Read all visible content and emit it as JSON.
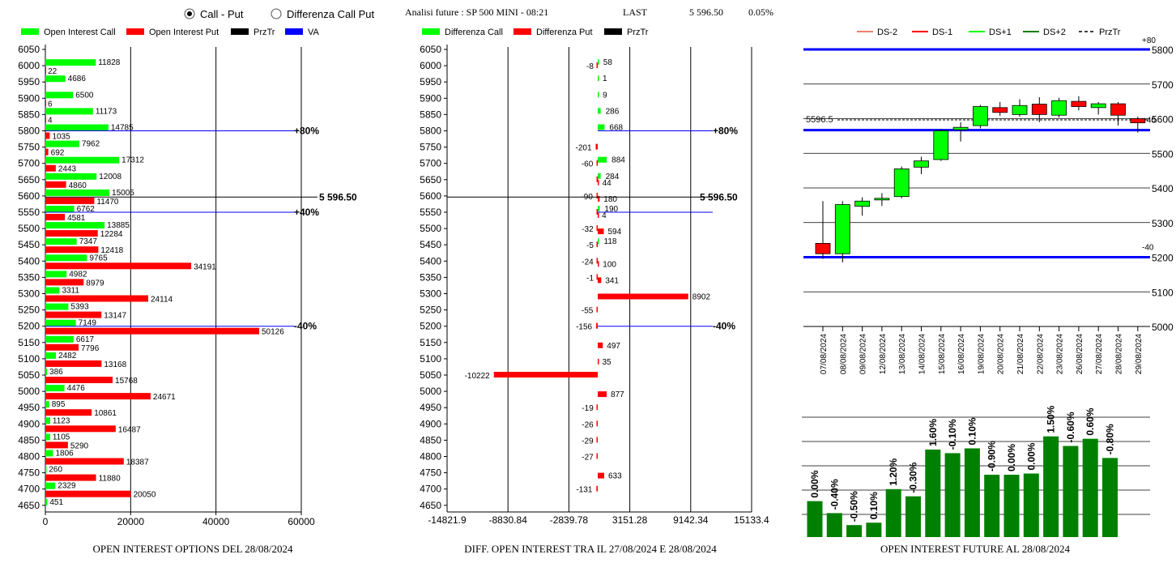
{
  "header": {
    "radio_call_put": "Call - Put",
    "radio_diff": "Differenza Call Put",
    "radio_selected": "call_put",
    "analysis_title": "Analisi future : SP 500 MINI - 08:21",
    "last_label": "LAST",
    "last_value": "5 596.50",
    "last_change": "0.05%"
  },
  "colors": {
    "call": "#00ff00",
    "put": "#ff0000",
    "przTr": "#000000",
    "va": "#0000ff",
    "bar_green": "#008000",
    "up_candle": "#00ff00",
    "down_candle": "#ff0000"
  },
  "chart_data": [
    {
      "type": "bar",
      "orientation": "horizontal",
      "title": "OPEN INTEREST OPTIONS DEL 28/08/2024",
      "legend": [
        "Open Interest Call",
        "Open Interest Put",
        "PrzTr",
        "VA"
      ],
      "categories": [
        6050,
        6000,
        5950,
        5900,
        5850,
        5800,
        5750,
        5700,
        5650,
        5600,
        5550,
        5500,
        5450,
        5400,
        5350,
        5300,
        5250,
        5200,
        5150,
        5100,
        5050,
        5000,
        4950,
        4900,
        4850,
        4800,
        4750,
        4700,
        4650
      ],
      "series": [
        {
          "name": "Open Interest Call",
          "values": [
            null,
            11828,
            4686,
            6500,
            11173,
            14785,
            7962,
            17312,
            12008,
            15005,
            6762,
            13885,
            7347,
            9765,
            4982,
            3311,
            5393,
            7149,
            6617,
            2482,
            386,
            4476,
            895,
            1123,
            1105,
            1806,
            260,
            2329,
            451
          ]
        },
        {
          "name": "Open Interest Put",
          "values": [
            null,
            22,
            null,
            6,
            4,
            1035,
            692,
            2443,
            4860,
            11470,
            4581,
            12284,
            12418,
            34191,
            8979,
            24114,
            13147,
            50126,
            7796,
            13168,
            15768,
            24671,
            10861,
            16487,
            5290,
            18387,
            11880,
            20050,
            null
          ]
        }
      ],
      "xlim": [
        0,
        60000
      ],
      "xticks": [
        "0",
        "20000",
        "40000",
        "60000"
      ],
      "price_line": {
        "value": 5596.5,
        "label": "5 596.50"
      },
      "va_lines": [
        {
          "strike": 5800,
          "label": "+80%"
        },
        {
          "strike": 5550,
          "label": "+40%"
        },
        {
          "strike": 5200,
          "label": "-40%"
        }
      ]
    },
    {
      "type": "bar",
      "orientation": "horizontal",
      "title": "DIFF. OPEN INTEREST TRA IL 27/08/2024 E 28/08/2024",
      "legend": [
        "Differenza Call",
        "Differenza Put",
        "PrzTr"
      ],
      "categories": [
        6050,
        6000,
        5950,
        5900,
        5850,
        5800,
        5750,
        5700,
        5650,
        5600,
        5550,
        5500,
        5450,
        5400,
        5350,
        5300,
        5250,
        5200,
        5150,
        5100,
        5050,
        5000,
        4950,
        4900,
        4850,
        4800,
        4750,
        4700,
        4650
      ],
      "series": [
        {
          "name": "Differenza Call",
          "values": [
            null,
            58,
            1,
            9,
            286,
            668,
            null,
            884,
            284,
            null,
            190,
            null,
            118,
            null,
            null,
            null,
            null,
            null,
            null,
            null,
            null,
            null,
            null,
            null,
            null,
            null,
            null,
            null,
            null
          ]
        },
        {
          "name": "Differenza Put",
          "values": [
            null,
            -8,
            null,
            null,
            null,
            null,
            -201,
            -60,
            44,
            -90,
            4,
            -32,
            -5,
            -24,
            -1,
            null,
            -55,
            -156,
            null,
            null,
            -10222,
            null,
            -19,
            -26,
            -29,
            -27,
            null,
            -131,
            null
          ]
        }
      ],
      "point_labels": [
        {
          "strike": 6000,
          "call": "58",
          "put": "-8"
        },
        {
          "strike": 5950,
          "call": "1"
        },
        {
          "strike": 5900,
          "call": "9"
        },
        {
          "strike": 5850,
          "call": "286"
        },
        {
          "strike": 5800,
          "call": "668"
        },
        {
          "strike": 5750,
          "put": "-201"
        },
        {
          "strike": 5700,
          "call": "884",
          "put": "-60"
        },
        {
          "strike": 5650,
          "call": "284",
          "put2": "44"
        },
        {
          "strike": 5600,
          "put": "-90",
          "put2": "180"
        },
        {
          "strike": 5550,
          "call": "190",
          "put2": "4"
        },
        {
          "strike": 5500,
          "put": "-32",
          "put2": "594"
        },
        {
          "strike": 5450,
          "put": "-5",
          "call": "118"
        },
        {
          "strike": 5400,
          "put": "-24",
          "put2": "100"
        },
        {
          "strike": 5350,
          "put": "-1",
          "put2": "341"
        },
        {
          "strike": 5300,
          "put2": "8902"
        },
        {
          "strike": 5250,
          "put": "-55"
        },
        {
          "strike": 5200,
          "put": "-156"
        },
        {
          "strike": 5150,
          "put2": "497"
        },
        {
          "strike": 5100,
          "put2": "35"
        },
        {
          "strike": 5050,
          "put": "-10222"
        },
        {
          "strike": 5000,
          "put2": "877"
        },
        {
          "strike": 4950,
          "put": "-19"
        },
        {
          "strike": 4900,
          "put": "-26"
        },
        {
          "strike": 4850,
          "put": "-29"
        },
        {
          "strike": 4800,
          "put": "-27"
        },
        {
          "strike": 4750,
          "put2": "633"
        },
        {
          "strike": 4700,
          "put": "-131"
        }
      ],
      "put_positive": {
        "5650": 44,
        "5600": 180,
        "5550": 4,
        "5500": 594,
        "5400": 100,
        "5350": 341,
        "5300": 8902,
        "5150": 497,
        "5100": 35,
        "5000": 877,
        "4750": 633
      },
      "xlim": [
        -14821.9,
        15133.4
      ],
      "xticks": [
        "-14821.9",
        "-8830.84",
        "-2839.78",
        "3151.28",
        "9142.34",
        "15133.4"
      ],
      "price_line": {
        "value": 5596.5,
        "label": "5 596.50"
      },
      "va_lines": [
        {
          "strike": 5800,
          "label": "+80%"
        },
        {
          "strike": 5550,
          "label": ""
        },
        {
          "strike": 5200,
          "label": "-40%"
        }
      ]
    },
    {
      "type": "candlestick",
      "legend": [
        "DS-2",
        "DS-1",
        "DS+1",
        "DS+2",
        "PrzTr"
      ],
      "legend_colors": [
        "#f08070",
        "#ff0000",
        "#00ff00",
        "#008000",
        "#000000"
      ],
      "dates": [
        "07/08/2024",
        "08/08/2024",
        "09/08/2024",
        "12/08/2024",
        "13/08/2024",
        "14/08/2024",
        "15/08/2024",
        "16/08/2024",
        "19/08/2024",
        "20/08/2024",
        "21/08/2024",
        "22/08/2024",
        "23/08/2024",
        "26/08/2024",
        "27/08/2024",
        "28/08/2024",
        "29/08/2024"
      ],
      "ohlc": [
        [
          5240,
          5362,
          5195,
          5210
        ],
        [
          5210,
          5362,
          5185,
          5352
        ],
        [
          5347,
          5373,
          5320,
          5362
        ],
        [
          5366,
          5385,
          5348,
          5370
        ],
        [
          5375,
          5462,
          5370,
          5455
        ],
        [
          5460,
          5490,
          5440,
          5478
        ],
        [
          5482,
          5570,
          5478,
          5565
        ],
        [
          5568,
          5590,
          5534,
          5575
        ],
        [
          5580,
          5640,
          5572,
          5635
        ],
        [
          5632,
          5648,
          5608,
          5618
        ],
        [
          5612,
          5656,
          5606,
          5638
        ],
        [
          5642,
          5662,
          5590,
          5612
        ],
        [
          5610,
          5660,
          5603,
          5652
        ],
        [
          5650,
          5665,
          5624,
          5635
        ],
        [
          5632,
          5648,
          5612,
          5643
        ],
        [
          5643,
          5648,
          5580,
          5610
        ],
        [
          5600,
          5606,
          5560,
          5588
        ]
      ],
      "ylim": [
        5000,
        5800
      ],
      "yticks": [
        "5000",
        "5100",
        "5200",
        "5300",
        "5400",
        "5500",
        "5600",
        "5700",
        "5800"
      ],
      "price_line": {
        "value": 5596.5,
        "label": "5596.5"
      },
      "blue_lines": [
        5800,
        5567,
        5200
      ],
      "blue_labels": [
        {
          "value": 5800,
          "label": "+80"
        },
        {
          "value": 5600,
          "label": "+40"
        },
        {
          "value": 5200,
          "label": "-40"
        }
      ]
    },
    {
      "type": "bar",
      "title": "OPEN INTEREST FUTURE AL 28/08/2024",
      "categories": [
        "07/08/2024",
        "08/08/2024",
        "09/08/2024",
        "12/08/2024",
        "13/08/2024",
        "14/08/2024",
        "15/08/2024",
        "16/08/2024",
        "19/08/2024",
        "20/08/2024",
        "21/08/2024",
        "22/08/2024",
        "23/08/2024",
        "26/08/2024",
        "27/08/2024",
        "28/08/2024"
      ],
      "labels": [
        "0.00%",
        "-0.40%",
        "-0.50%",
        "0.10%",
        "1.20%",
        "-0.30%",
        "1.60%",
        "-0.10%",
        "0.10%",
        "-0.90%",
        "0.00%",
        "0.00%",
        "1.50%",
        "-0.60%",
        "0.60%",
        "-0.80%"
      ],
      "values": [
        0.3,
        0.2,
        0.1,
        0.12,
        0.4,
        0.34,
        0.73,
        0.7,
        0.74,
        0.52,
        0.52,
        0.53,
        0.84,
        0.76,
        0.82,
        0.66
      ]
    }
  ]
}
